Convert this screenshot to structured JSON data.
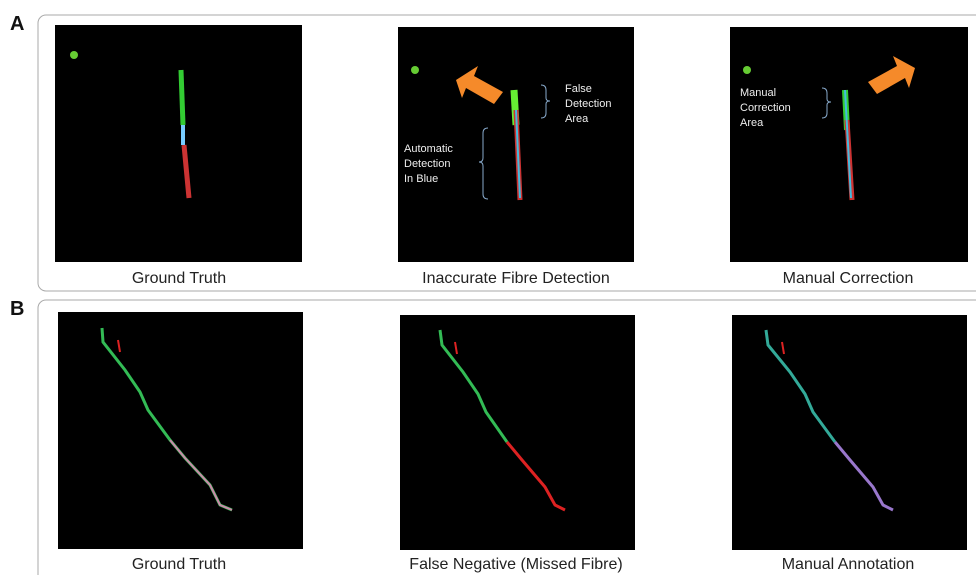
{
  "panels": [
    {
      "label": "A",
      "images": [
        {
          "caption": "Ground Truth"
        },
        {
          "caption": "Inaccurate Fibre Detection",
          "annotations": [
            [
              "False",
              "Detection",
              "Area"
            ],
            [
              "Automatic",
              "Detection",
              "In Blue"
            ]
          ]
        },
        {
          "caption": "Manual Correction",
          "annotations": [
            [
              "Manual",
              "Correction",
              "Area"
            ]
          ]
        }
      ]
    },
    {
      "label": "B",
      "images": [
        {
          "caption": "Ground Truth"
        },
        {
          "caption": "False Negative (Missed Fibre)"
        },
        {
          "caption": "Manual Annotation"
        }
      ]
    }
  ]
}
